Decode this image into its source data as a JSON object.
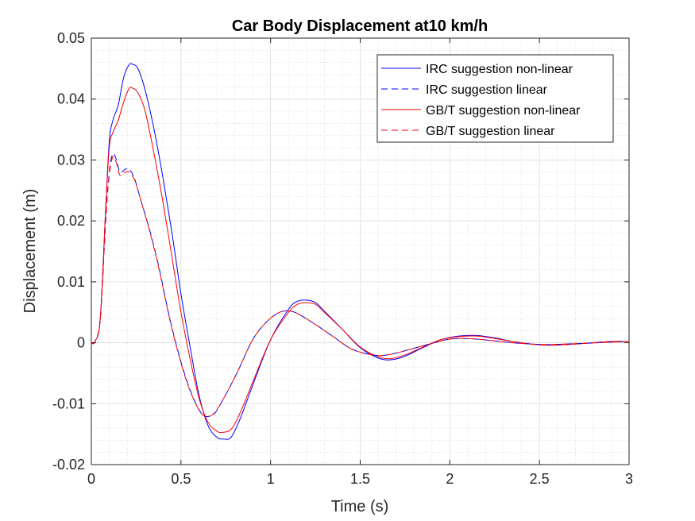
{
  "chart_data": {
    "type": "line",
    "title": "Car Body Displacement at10 km/h",
    "xlabel": "Time (s)",
    "ylabel": "Displacement (m)",
    "xlim": [
      0,
      3
    ],
    "ylim": [
      -0.02,
      0.05
    ],
    "x_ticks": [
      0,
      0.5,
      1,
      1.5,
      2,
      2.5,
      3
    ],
    "x_tick_labels": [
      "0",
      "0.5",
      "1",
      "1.5",
      "2",
      "2.5",
      "3"
    ],
    "y_ticks": [
      -0.02,
      -0.01,
      0,
      0.01,
      0.02,
      0.03,
      0.04,
      0.05
    ],
    "y_tick_labels": [
      "-0.02",
      "-0.01",
      "0",
      "0.01",
      "0.02",
      "0.03",
      "0.04",
      "0.05"
    ],
    "grid": true,
    "minor_grid": true,
    "legend_position": "top-right",
    "series": [
      {
        "name": "IRC suggestion non-linear",
        "color": "#0000ff",
        "style": "solid",
        "points": [
          [
            0,
            0
          ],
          [
            0.02,
            0.0002
          ],
          [
            0.05,
            0.004
          ],
          [
            0.08,
            0.022
          ],
          [
            0.1,
            0.033
          ],
          [
            0.12,
            0.0365
          ],
          [
            0.15,
            0.039
          ],
          [
            0.18,
            0.0435
          ],
          [
            0.21,
            0.0456
          ],
          [
            0.23,
            0.0457
          ],
          [
            0.26,
            0.045
          ],
          [
            0.3,
            0.0415
          ],
          [
            0.35,
            0.035
          ],
          [
            0.4,
            0.027
          ],
          [
            0.45,
            0.018
          ],
          [
            0.5,
            0.008
          ],
          [
            0.55,
            -0.0005
          ],
          [
            0.6,
            -0.0085
          ],
          [
            0.65,
            -0.0135
          ],
          [
            0.7,
            -0.0155
          ],
          [
            0.74,
            -0.0158
          ],
          [
            0.78,
            -0.0155
          ],
          [
            0.83,
            -0.0125
          ],
          [
            0.9,
            -0.007
          ],
          [
            1.0,
            0.0005
          ],
          [
            1.1,
            0.0055
          ],
          [
            1.15,
            0.0068
          ],
          [
            1.2,
            0.007
          ],
          [
            1.25,
            0.0066
          ],
          [
            1.3,
            0.0052
          ],
          [
            1.4,
            0.0022
          ],
          [
            1.5,
            -0.0008
          ],
          [
            1.6,
            -0.0025
          ],
          [
            1.67,
            -0.0028
          ],
          [
            1.75,
            -0.0022
          ],
          [
            1.85,
            -0.0008
          ],
          [
            1.95,
            0.0005
          ],
          [
            2.05,
            0.0011
          ],
          [
            2.15,
            0.0012
          ],
          [
            2.25,
            0.0008
          ],
          [
            2.35,
            0.0002
          ],
          [
            2.45,
            -0.0002
          ],
          [
            2.55,
            -0.0004
          ],
          [
            2.65,
            -0.0003
          ],
          [
            2.75,
            -0.0001
          ],
          [
            2.9,
            0.0002
          ],
          [
            3.0,
            0.0002
          ]
        ]
      },
      {
        "name": "IRC suggestion linear",
        "color": "#0000ff",
        "style": "dashed",
        "points": [
          [
            0,
            0
          ],
          [
            0.02,
            0.0002
          ],
          [
            0.05,
            0.004
          ],
          [
            0.08,
            0.02
          ],
          [
            0.1,
            0.028
          ],
          [
            0.12,
            0.031
          ],
          [
            0.14,
            0.03
          ],
          [
            0.16,
            0.028
          ],
          [
            0.19,
            0.0285
          ],
          [
            0.21,
            0.0285
          ],
          [
            0.24,
            0.027
          ],
          [
            0.28,
            0.023
          ],
          [
            0.33,
            0.018
          ],
          [
            0.38,
            0.012
          ],
          [
            0.43,
            0.005
          ],
          [
            0.48,
            -0.001
          ],
          [
            0.53,
            -0.006
          ],
          [
            0.58,
            -0.0098
          ],
          [
            0.62,
            -0.0118
          ],
          [
            0.65,
            -0.0121
          ],
          [
            0.69,
            -0.0115
          ],
          [
            0.75,
            -0.0085
          ],
          [
            0.82,
            -0.0045
          ],
          [
            0.9,
            0.0005
          ],
          [
            0.98,
            0.0035
          ],
          [
            1.05,
            0.005
          ],
          [
            1.1,
            0.0052
          ],
          [
            1.15,
            0.0048
          ],
          [
            1.25,
            0.003
          ],
          [
            1.35,
            0.001
          ],
          [
            1.45,
            -0.001
          ],
          [
            1.55,
            -0.0019
          ],
          [
            1.62,
            -0.0021
          ],
          [
            1.7,
            -0.0017
          ],
          [
            1.8,
            -0.0009
          ],
          [
            1.9,
            -0.0001
          ],
          [
            1.98,
            0.0005
          ],
          [
            2.05,
            0.0007
          ],
          [
            2.15,
            0.0006
          ],
          [
            2.25,
            0.0003
          ],
          [
            2.35,
            0
          ],
          [
            2.45,
            -0.0002
          ],
          [
            2.55,
            -0.0003
          ],
          [
            2.65,
            -0.0002
          ],
          [
            2.75,
            -0.0001
          ],
          [
            2.9,
            0.0001
          ],
          [
            3.0,
            0.0002
          ]
        ]
      },
      {
        "name": "GB/T suggestion non-linear",
        "color": "#ff0000",
        "style": "solid",
        "points": [
          [
            0,
            0
          ],
          [
            0.02,
            0.0002
          ],
          [
            0.05,
            0.004
          ],
          [
            0.08,
            0.022
          ],
          [
            0.1,
            0.032
          ],
          [
            0.12,
            0.0345
          ],
          [
            0.15,
            0.0365
          ],
          [
            0.18,
            0.0395
          ],
          [
            0.21,
            0.0417
          ],
          [
            0.23,
            0.0418
          ],
          [
            0.26,
            0.041
          ],
          [
            0.3,
            0.038
          ],
          [
            0.35,
            0.031
          ],
          [
            0.4,
            0.023
          ],
          [
            0.45,
            0.014
          ],
          [
            0.5,
            0.005
          ],
          [
            0.55,
            -0.0025
          ],
          [
            0.6,
            -0.009
          ],
          [
            0.65,
            -0.013
          ],
          [
            0.7,
            -0.0145
          ],
          [
            0.73,
            -0.0147
          ],
          [
            0.78,
            -0.0142
          ],
          [
            0.83,
            -0.0115
          ],
          [
            0.9,
            -0.0065
          ],
          [
            1.0,
            0.0005
          ],
          [
            1.1,
            0.005
          ],
          [
            1.15,
            0.0063
          ],
          [
            1.2,
            0.0066
          ],
          [
            1.25,
            0.0063
          ],
          [
            1.3,
            0.005
          ],
          [
            1.4,
            0.0022
          ],
          [
            1.5,
            -0.0007
          ],
          [
            1.6,
            -0.0023
          ],
          [
            1.67,
            -0.0026
          ],
          [
            1.75,
            -0.002
          ],
          [
            1.85,
            -0.0007
          ],
          [
            1.95,
            0.0005
          ],
          [
            2.05,
            0.001
          ],
          [
            2.15,
            0.0011
          ],
          [
            2.25,
            0.0007
          ],
          [
            2.35,
            0.0002
          ],
          [
            2.45,
            -0.0002
          ],
          [
            2.55,
            -0.0004
          ],
          [
            2.65,
            -0.0003
          ],
          [
            2.75,
            -0.0001
          ],
          [
            2.9,
            0.0002
          ],
          [
            3.0,
            0.0002
          ]
        ]
      },
      {
        "name": "GB/T suggestion linear",
        "color": "#ff0000",
        "style": "dashed",
        "points": [
          [
            0,
            0
          ],
          [
            0.02,
            0.0002
          ],
          [
            0.05,
            0.004
          ],
          [
            0.08,
            0.02
          ],
          [
            0.1,
            0.0275
          ],
          [
            0.12,
            0.0305
          ],
          [
            0.14,
            0.0295
          ],
          [
            0.16,
            0.0275
          ],
          [
            0.19,
            0.028
          ],
          [
            0.21,
            0.028
          ],
          [
            0.24,
            0.0268
          ],
          [
            0.28,
            0.023
          ],
          [
            0.33,
            0.0178
          ],
          [
            0.38,
            0.0118
          ],
          [
            0.43,
            0.0048
          ],
          [
            0.48,
            -0.0012
          ],
          [
            0.53,
            -0.0062
          ],
          [
            0.58,
            -0.0099
          ],
          [
            0.62,
            -0.0118
          ],
          [
            0.65,
            -0.0121
          ],
          [
            0.69,
            -0.0114
          ],
          [
            0.75,
            -0.0085
          ],
          [
            0.82,
            -0.0045
          ],
          [
            0.9,
            0.0005
          ],
          [
            0.98,
            0.0035
          ],
          [
            1.05,
            0.005
          ],
          [
            1.1,
            0.0052
          ],
          [
            1.15,
            0.0048
          ],
          [
            1.25,
            0.003
          ],
          [
            1.35,
            0.001
          ],
          [
            1.45,
            -0.001
          ],
          [
            1.55,
            -0.0019
          ],
          [
            1.62,
            -0.0021
          ],
          [
            1.7,
            -0.0017
          ],
          [
            1.8,
            -0.0009
          ],
          [
            1.9,
            -0.0001
          ],
          [
            1.98,
            0.0005
          ],
          [
            2.05,
            0.0007
          ],
          [
            2.15,
            0.0006
          ],
          [
            2.25,
            0.0003
          ],
          [
            2.35,
            0
          ],
          [
            2.45,
            -0.0002
          ],
          [
            2.55,
            -0.0003
          ],
          [
            2.65,
            -0.0002
          ],
          [
            2.75,
            -0.0001
          ],
          [
            2.9,
            0.0001
          ],
          [
            3.0,
            0.0002
          ]
        ]
      }
    ]
  }
}
